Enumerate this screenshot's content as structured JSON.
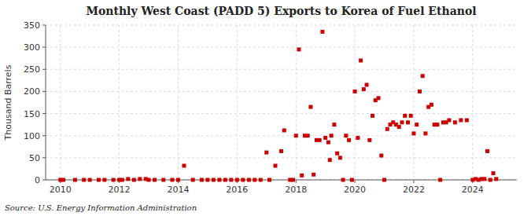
{
  "chart_data": {
    "type": "scatter",
    "title": "Monthly West Coast (PADD 5) Exports to Korea of Fuel Ethanol",
    "y_label": "Thousand Barrels",
    "annotations": [
      "Source: U.S. Energy Information Administration"
    ],
    "color": "#cc0000",
    "marker": "square",
    "grid": true,
    "xlim": [
      2009.5,
      2025.5
    ],
    "xticks": [
      2010,
      2012,
      2014,
      2016,
      2018,
      2020,
      2022,
      2024
    ],
    "ylim": [
      0,
      350
    ],
    "yticks": [
      0,
      50,
      100,
      150,
      200,
      250,
      300,
      350
    ],
    "x": [
      2010.0,
      2010.1,
      2010.5,
      2010.8,
      2011.0,
      2011.3,
      2011.5,
      2011.8,
      2012.0,
      2012.1,
      2012.3,
      2012.5,
      2012.7,
      2012.9,
      2013.0,
      2013.2,
      2013.5,
      2013.8,
      2014.0,
      2014.2,
      2014.5,
      2014.8,
      2015.0,
      2015.2,
      2015.4,
      2015.6,
      2015.8,
      2016.0,
      2016.2,
      2016.4,
      2016.6,
      2016.8,
      2017.0,
      2017.1,
      2017.3,
      2017.5,
      2017.6,
      2017.8,
      2017.9,
      2018.0,
      2018.1,
      2018.2,
      2018.3,
      2018.4,
      2018.5,
      2018.6,
      2018.7,
      2018.8,
      2018.9,
      2019.0,
      2019.1,
      2019.15,
      2019.2,
      2019.3,
      2019.4,
      2019.5,
      2019.6,
      2019.7,
      2019.8,
      2019.9,
      2020.0,
      2020.1,
      2020.2,
      2020.3,
      2020.4,
      2020.5,
      2020.6,
      2020.7,
      2020.8,
      2020.9,
      2021.0,
      2021.1,
      2021.2,
      2021.3,
      2021.4,
      2021.5,
      2021.6,
      2021.7,
      2021.8,
      2021.9,
      2022.0,
      2022.1,
      2022.2,
      2022.3,
      2022.4,
      2022.5,
      2022.6,
      2022.7,
      2022.8,
      2022.9,
      2023.0,
      2023.1,
      2023.2,
      2023.4,
      2023.6,
      2023.8,
      2024.0,
      2024.1,
      2024.2,
      2024.3,
      2024.4,
      2024.5,
      2024.6,
      2024.7,
      2024.8
    ],
    "values": [
      0,
      0,
      0,
      0,
      0,
      0,
      0,
      0,
      0,
      0,
      2,
      0,
      2,
      2,
      0,
      0,
      0,
      0,
      0,
      32,
      0,
      0,
      0,
      0,
      0,
      0,
      0,
      0,
      0,
      0,
      0,
      0,
      62,
      0,
      32,
      65,
      112,
      0,
      0,
      100,
      295,
      10,
      100,
      100,
      165,
      12,
      90,
      90,
      335,
      95,
      85,
      45,
      100,
      125,
      60,
      50,
      0,
      100,
      90,
      0,
      200,
      95,
      270,
      205,
      215,
      90,
      145,
      180,
      185,
      55,
      0,
      115,
      125,
      130,
      125,
      120,
      130,
      145,
      130,
      145,
      105,
      125,
      200,
      235,
      105,
      165,
      170,
      125,
      125,
      0,
      130,
      130,
      135,
      130,
      135,
      135,
      0,
      2,
      0,
      2,
      2,
      65,
      0,
      15,
      2
    ]
  }
}
